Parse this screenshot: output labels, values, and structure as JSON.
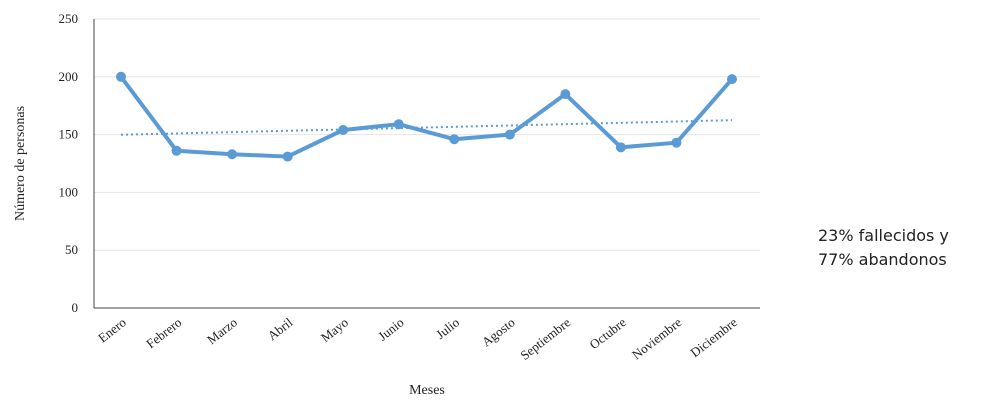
{
  "chart_data": {
    "type": "line",
    "categories": [
      "Enero",
      "Febrero",
      "Marzo",
      "Abril",
      "Mayo",
      "Junio",
      "Julio",
      "Agosto",
      "Septiembre",
      "Octubre",
      "Noviembre",
      "Diciembre"
    ],
    "series": [
      {
        "values": [
          200,
          136,
          133,
          131,
          154,
          159,
          146,
          150,
          185,
          139,
          143,
          198
        ],
        "color": "#5b9bd5"
      }
    ],
    "trendline": {
      "type": "linear",
      "style": "dotted",
      "color": "#5b9bd5"
    },
    "xlabel": "Meses",
    "ylabel": "Número de personas",
    "ylim": [
      0,
      250
    ],
    "yticks": [
      0,
      50,
      100,
      150,
      200,
      250
    ],
    "grid": true
  },
  "annotation": {
    "line1": "23% fallecidos y",
    "line2": "77% abandonos"
  }
}
